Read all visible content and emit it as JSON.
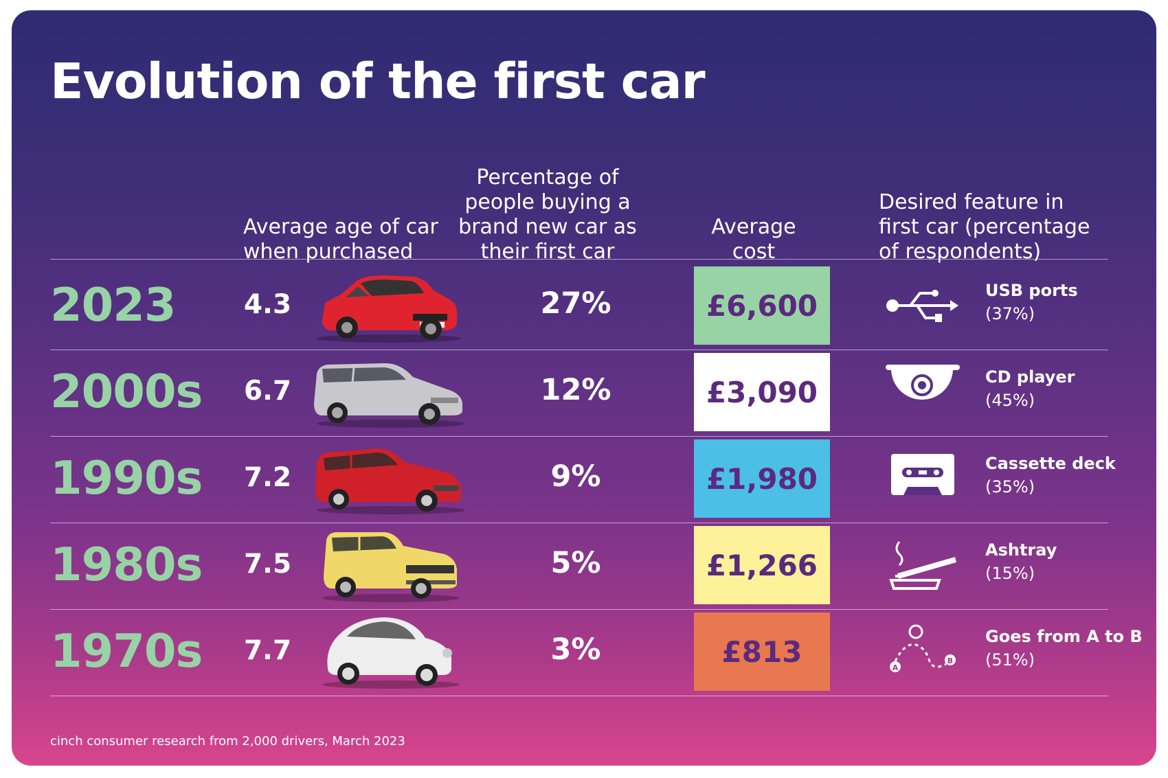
{
  "title": "Evolution of the first car",
  "headers": {
    "age": "Average age of car when purchased",
    "pct": "Percentage of people buying a brand new car as their first car",
    "cost": "Average cost",
    "feature": "Desired feature in first car (percentage of respondents)"
  },
  "rows": [
    {
      "decade": "2023",
      "age": "4.3",
      "pct": "27%",
      "cost": "£6,600",
      "cost_color": "#98d3a6",
      "feature": "USB ports",
      "feature_pct": "(37%)",
      "car_icon": "red-hatchback-car-icon",
      "feature_icon": "usb-icon"
    },
    {
      "decade": "2000s",
      "age": "6.7",
      "pct": "12%",
      "cost": "£3,090",
      "cost_color": "#ffffff",
      "feature": "CD player",
      "feature_pct": "(45%)",
      "car_icon": "silver-hatchback-car-icon",
      "feature_icon": "cd-player-icon"
    },
    {
      "decade": "1990s",
      "age": "7.2",
      "pct": "9%",
      "cost": "£1,980",
      "cost_color": "#4cbfe6",
      "feature": "Cassette deck",
      "feature_pct": "(35%)",
      "car_icon": "red-hatchback-car-icon",
      "feature_icon": "cassette-icon"
    },
    {
      "decade": "1980s",
      "age": "7.5",
      "pct": "5%",
      "cost": "£1,266",
      "cost_color": "#fdf299",
      "feature": "Ashtray",
      "feature_pct": "(15%)",
      "car_icon": "yellow-hatchback-car-icon",
      "feature_icon": "ashtray-icon"
    },
    {
      "decade": "1970s",
      "age": "7.7",
      "pct": "3%",
      "cost": "£813",
      "cost_color": "#e8784f",
      "feature": "Goes from A to B",
      "feature_pct": "(51%)",
      "car_icon": "white-beetle-car-icon",
      "feature_icon": "route-icon",
      "route_a": "A",
      "route_b": "B"
    }
  ],
  "footnote": "cinch consumer research from 2,000 drivers, March 2023"
}
